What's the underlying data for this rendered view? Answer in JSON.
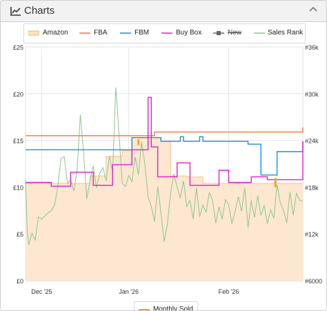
{
  "panel": {
    "title": "Charts",
    "icon": "line-chart-icon",
    "collapse_icon": "chevron-up-icon"
  },
  "legend": {
    "items": [
      {
        "label": "Amazon",
        "color": "#f5c58a",
        "icon": "area-swatch"
      },
      {
        "label": "FBA",
        "color": "#ff6f3a",
        "icon": "line-swatch"
      },
      {
        "label": "FBM",
        "color": "#1e90d4",
        "icon": "line-swatch"
      },
      {
        "label": "Buy Box",
        "color": "#e21ccf",
        "icon": "line-swatch"
      },
      {
        "label": "New",
        "color": "#666666",
        "icon": "square-line-swatch",
        "hidden": true
      },
      {
        "label": "Sales Rank",
        "color": "#8fc48f",
        "icon": "line-swatch"
      }
    ],
    "bottom_label": "Monthly Sold",
    "bottom_color": "#f5a623"
  },
  "chart_data": {
    "type": "line",
    "x_ticks": [
      {
        "label": "Dec '25",
        "day": 5
      },
      {
        "label": "Jan '26",
        "day": 32
      },
      {
        "label": "Feb '26",
        "day": 63
      }
    ],
    "x_range_days": [
      0,
      86
    ],
    "y_left": {
      "ticks": [
        "£0",
        "£5",
        "£10",
        "£15",
        "£20",
        "£25"
      ],
      "min": 0,
      "max": 25
    },
    "y_right": {
      "ticks": [
        "#6000",
        "#12k",
        "#18k",
        "#24k",
        "#30k",
        "#36k"
      ],
      "min": 6000,
      "max": 36000
    },
    "grid": true,
    "series": [
      {
        "name": "Amazon",
        "type": "area",
        "color": "#f5c58a",
        "points": [
          [
            0,
            10.4
          ],
          [
            5,
            10.4
          ],
          [
            10,
            10.4
          ],
          [
            15,
            10.4
          ],
          [
            20,
            11.2
          ],
          [
            25,
            13.3
          ],
          [
            30,
            13.9
          ],
          [
            33,
            15.3
          ],
          [
            36,
            15.3
          ],
          [
            40,
            15.3
          ],
          [
            42,
            14.9
          ],
          [
            45,
            11.2
          ],
          [
            50,
            11.1
          ],
          [
            55,
            10.4
          ],
          [
            60,
            10.4
          ],
          [
            65,
            10.4
          ],
          [
            70,
            10.4
          ],
          [
            75,
            10.4
          ],
          [
            77,
            10.4
          ],
          [
            80,
            10.4
          ],
          [
            85,
            10.4
          ],
          [
            86,
            10.4
          ]
        ]
      },
      {
        "name": "FBA",
        "color": "#ff6f3a",
        "points": [
          [
            0,
            15.5
          ],
          [
            5,
            15.5
          ],
          [
            10,
            15.5
          ],
          [
            15,
            15.5
          ],
          [
            20,
            15.5
          ],
          [
            25,
            15.5
          ],
          [
            30,
            15.5
          ],
          [
            33,
            15.5
          ],
          [
            35,
            15.5
          ],
          [
            39,
            15.5
          ],
          [
            40,
            15.9
          ],
          [
            45,
            15.9
          ],
          [
            50,
            15.9
          ],
          [
            55,
            15.9
          ],
          [
            60,
            15.9
          ],
          [
            65,
            15.9
          ],
          [
            70,
            15.9
          ],
          [
            72,
            15.9
          ],
          [
            75,
            15.9
          ],
          [
            80,
            15.9
          ],
          [
            85,
            15.9
          ],
          [
            86,
            15.9
          ],
          [
            86,
            16.4
          ]
        ]
      },
      {
        "name": "FBM",
        "color": "#1e90d4",
        "points": [
          [
            0,
            14.0
          ],
          [
            5,
            14.0
          ],
          [
            10,
            14.0
          ],
          [
            15,
            14.0
          ],
          [
            18,
            14.0
          ],
          [
            22,
            14.0
          ],
          [
            25,
            14.0
          ],
          [
            30,
            14.0
          ],
          [
            33,
            14.0
          ],
          [
            33,
            15.3
          ],
          [
            36,
            15.3
          ],
          [
            40,
            15.3
          ],
          [
            42,
            14.9
          ],
          [
            47,
            14.9
          ],
          [
            48,
            15.4
          ],
          [
            49,
            14.9
          ],
          [
            53,
            14.9
          ],
          [
            54,
            15.4
          ],
          [
            55,
            14.9
          ],
          [
            60,
            14.9
          ],
          [
            65,
            14.9
          ],
          [
            68,
            14.9
          ],
          [
            69,
            14.6
          ],
          [
            72,
            14.6
          ],
          [
            73,
            11.3
          ],
          [
            77,
            11.3
          ],
          [
            78,
            13.8
          ],
          [
            82,
            13.8
          ],
          [
            85,
            13.8
          ],
          [
            86,
            14.9
          ]
        ]
      },
      {
        "name": "Buy Box",
        "color": "#e21ccf",
        "points": [
          [
            0,
            10.5
          ],
          [
            7,
            10.5
          ],
          [
            8,
            10.1
          ],
          [
            13,
            10.1
          ],
          [
            14,
            11.6
          ],
          [
            20,
            11.6
          ],
          [
            21,
            10.2
          ],
          [
            26,
            10.2
          ],
          [
            27,
            12.4
          ],
          [
            33,
            12.4
          ],
          [
            33,
            14.0
          ],
          [
            38,
            14.0
          ],
          [
            38,
            19.6
          ],
          [
            38.6,
            19.6
          ],
          [
            39,
            14.3
          ],
          [
            41,
            14.3
          ],
          [
            41,
            11.1
          ],
          [
            47,
            11.1
          ],
          [
            47,
            12.6
          ],
          [
            50,
            12.6
          ],
          [
            51,
            10.2
          ],
          [
            59,
            10.2
          ],
          [
            60,
            11.8
          ],
          [
            62,
            11.8
          ],
          [
            63,
            10.5
          ],
          [
            69,
            10.5
          ],
          [
            70,
            11.1
          ],
          [
            74,
            11.1
          ],
          [
            75,
            10.8
          ],
          [
            85,
            10.8
          ],
          [
            86,
            14.9
          ]
        ]
      },
      {
        "name": "Sales Rank",
        "color": "#8fc48f",
        "axis": "right",
        "points": [
          [
            0,
            18900
          ],
          [
            0.5,
            12500
          ],
          [
            1,
            10600
          ],
          [
            2,
            12100
          ],
          [
            3,
            11200
          ],
          [
            4,
            14200
          ],
          [
            5,
            13900
          ],
          [
            6,
            14300
          ],
          [
            7,
            14700
          ],
          [
            8,
            15000
          ],
          [
            9,
            15700
          ],
          [
            10,
            18000
          ],
          [
            11,
            21700
          ],
          [
            12,
            21900
          ],
          [
            13,
            18500
          ],
          [
            14,
            18900
          ],
          [
            15,
            17500
          ],
          [
            16,
            20200
          ],
          [
            17,
            27300
          ],
          [
            18,
            22400
          ],
          [
            19,
            16500
          ],
          [
            20,
            18800
          ],
          [
            21,
            20700
          ],
          [
            22,
            17900
          ],
          [
            23,
            19800
          ],
          [
            24,
            20500
          ],
          [
            25,
            18800
          ],
          [
            26,
            22000
          ],
          [
            27,
            19900
          ],
          [
            28,
            30800
          ],
          [
            29,
            24800
          ],
          [
            30,
            18500
          ],
          [
            31,
            18100
          ],
          [
            32,
            19500
          ],
          [
            33,
            18700
          ],
          [
            34,
            21900
          ],
          [
            35,
            19600
          ],
          [
            36,
            23800
          ],
          [
            37,
            21000
          ],
          [
            38,
            16800
          ],
          [
            39,
            15500
          ],
          [
            40,
            13600
          ],
          [
            41,
            18100
          ],
          [
            42,
            14700
          ],
          [
            43,
            11000
          ],
          [
            44,
            13300
          ],
          [
            45,
            17300
          ],
          [
            46,
            19700
          ],
          [
            47,
            18000
          ],
          [
            48,
            16600
          ],
          [
            49,
            18800
          ],
          [
            50,
            15500
          ],
          [
            51,
            16300
          ],
          [
            52,
            13900
          ],
          [
            53,
            17900
          ],
          [
            54,
            14200
          ],
          [
            55,
            15700
          ],
          [
            56,
            14800
          ],
          [
            57,
            17300
          ],
          [
            58,
            16300
          ],
          [
            59,
            13400
          ],
          [
            60,
            15500
          ],
          [
            61,
            13900
          ],
          [
            62,
            16400
          ],
          [
            63,
            15700
          ],
          [
            64,
            13300
          ],
          [
            65,
            14900
          ],
          [
            66,
            16800
          ],
          [
            67,
            14900
          ],
          [
            68,
            17900
          ],
          [
            69,
            12800
          ],
          [
            70,
            16300
          ],
          [
            71,
            14100
          ],
          [
            72,
            16900
          ],
          [
            73,
            14400
          ],
          [
            74,
            15600
          ],
          [
            75,
            13300
          ],
          [
            76,
            15100
          ],
          [
            77,
            14000
          ],
          [
            78,
            18300
          ],
          [
            79,
            16000
          ],
          [
            80,
            15000
          ],
          [
            81,
            13400
          ],
          [
            82,
            17400
          ],
          [
            83,
            14400
          ],
          [
            84,
            17200
          ],
          [
            85,
            16300
          ],
          [
            86,
            16200
          ]
        ]
      }
    ],
    "spikes": [
      {
        "series": "Amazon",
        "day": 35,
        "from": 14.5,
        "to": 15.1,
        "color": "#f5a623"
      },
      {
        "series": "Amazon",
        "day": 77.5,
        "from": 10.0,
        "to": 11.0,
        "color": "#f5a623"
      }
    ]
  }
}
